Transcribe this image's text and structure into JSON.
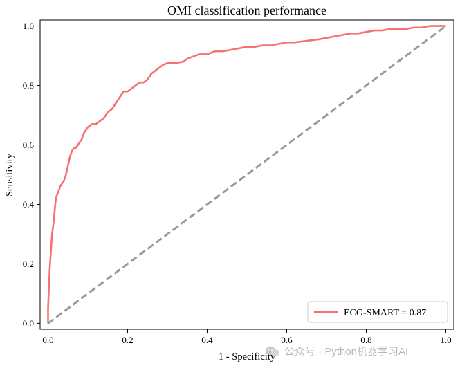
{
  "chart_data": {
    "type": "line",
    "title": "OMI classification performance",
    "xlabel": "1 - Specificity",
    "ylabel": "Sensitivity",
    "xlim": [
      -0.02,
      1.02
    ],
    "ylim": [
      -0.02,
      1.02
    ],
    "xticks": [
      "0.0",
      "0.2",
      "0.4",
      "0.6",
      "0.8",
      "1.0"
    ],
    "yticks": [
      "0.0",
      "0.2",
      "0.4",
      "0.6",
      "0.8",
      "1.0"
    ],
    "grid": false,
    "legend_position": "lower-right",
    "series": [
      {
        "name": "ECG-SMART = 0.87",
        "color": "#f87171",
        "style": "solid",
        "x": [
          0.0,
          0.0,
          0.002,
          0.004,
          0.006,
          0.008,
          0.01,
          0.012,
          0.014,
          0.016,
          0.018,
          0.02,
          0.022,
          0.025,
          0.028,
          0.03,
          0.035,
          0.04,
          0.045,
          0.05,
          0.055,
          0.06,
          0.065,
          0.07,
          0.075,
          0.08,
          0.085,
          0.09,
          0.095,
          0.1,
          0.11,
          0.12,
          0.13,
          0.14,
          0.15,
          0.16,
          0.17,
          0.175,
          0.18,
          0.19,
          0.2,
          0.21,
          0.22,
          0.23,
          0.24,
          0.25,
          0.26,
          0.27,
          0.28,
          0.29,
          0.3,
          0.32,
          0.34,
          0.35,
          0.37,
          0.38,
          0.4,
          0.42,
          0.44,
          0.46,
          0.48,
          0.5,
          0.52,
          0.54,
          0.56,
          0.58,
          0.6,
          0.62,
          0.65,
          0.68,
          0.7,
          0.72,
          0.74,
          0.76,
          0.78,
          0.8,
          0.82,
          0.84,
          0.86,
          0.88,
          0.9,
          0.92,
          0.94,
          0.96,
          0.98,
          1.0
        ],
        "y": [
          0.0,
          0.05,
          0.12,
          0.18,
          0.22,
          0.26,
          0.3,
          0.32,
          0.34,
          0.37,
          0.4,
          0.42,
          0.43,
          0.44,
          0.45,
          0.46,
          0.47,
          0.48,
          0.5,
          0.53,
          0.56,
          0.58,
          0.59,
          0.59,
          0.6,
          0.61,
          0.62,
          0.64,
          0.65,
          0.66,
          0.67,
          0.67,
          0.68,
          0.69,
          0.71,
          0.72,
          0.74,
          0.75,
          0.76,
          0.78,
          0.78,
          0.79,
          0.8,
          0.81,
          0.81,
          0.82,
          0.84,
          0.85,
          0.86,
          0.87,
          0.875,
          0.875,
          0.88,
          0.89,
          0.9,
          0.905,
          0.905,
          0.915,
          0.915,
          0.92,
          0.925,
          0.93,
          0.93,
          0.935,
          0.935,
          0.94,
          0.945,
          0.945,
          0.95,
          0.955,
          0.96,
          0.965,
          0.97,
          0.975,
          0.975,
          0.98,
          0.985,
          0.985,
          0.99,
          0.99,
          0.99,
          0.995,
          0.995,
          1.0,
          1.0,
          1.0
        ]
      },
      {
        "name": "",
        "color": "#999999",
        "style": "dashed",
        "x": [
          0.0,
          1.0
        ],
        "y": [
          0.0,
          1.0
        ]
      }
    ]
  },
  "watermark": {
    "text": "公众号 · Python机器学习AI",
    "icon": "wechat-icon"
  }
}
